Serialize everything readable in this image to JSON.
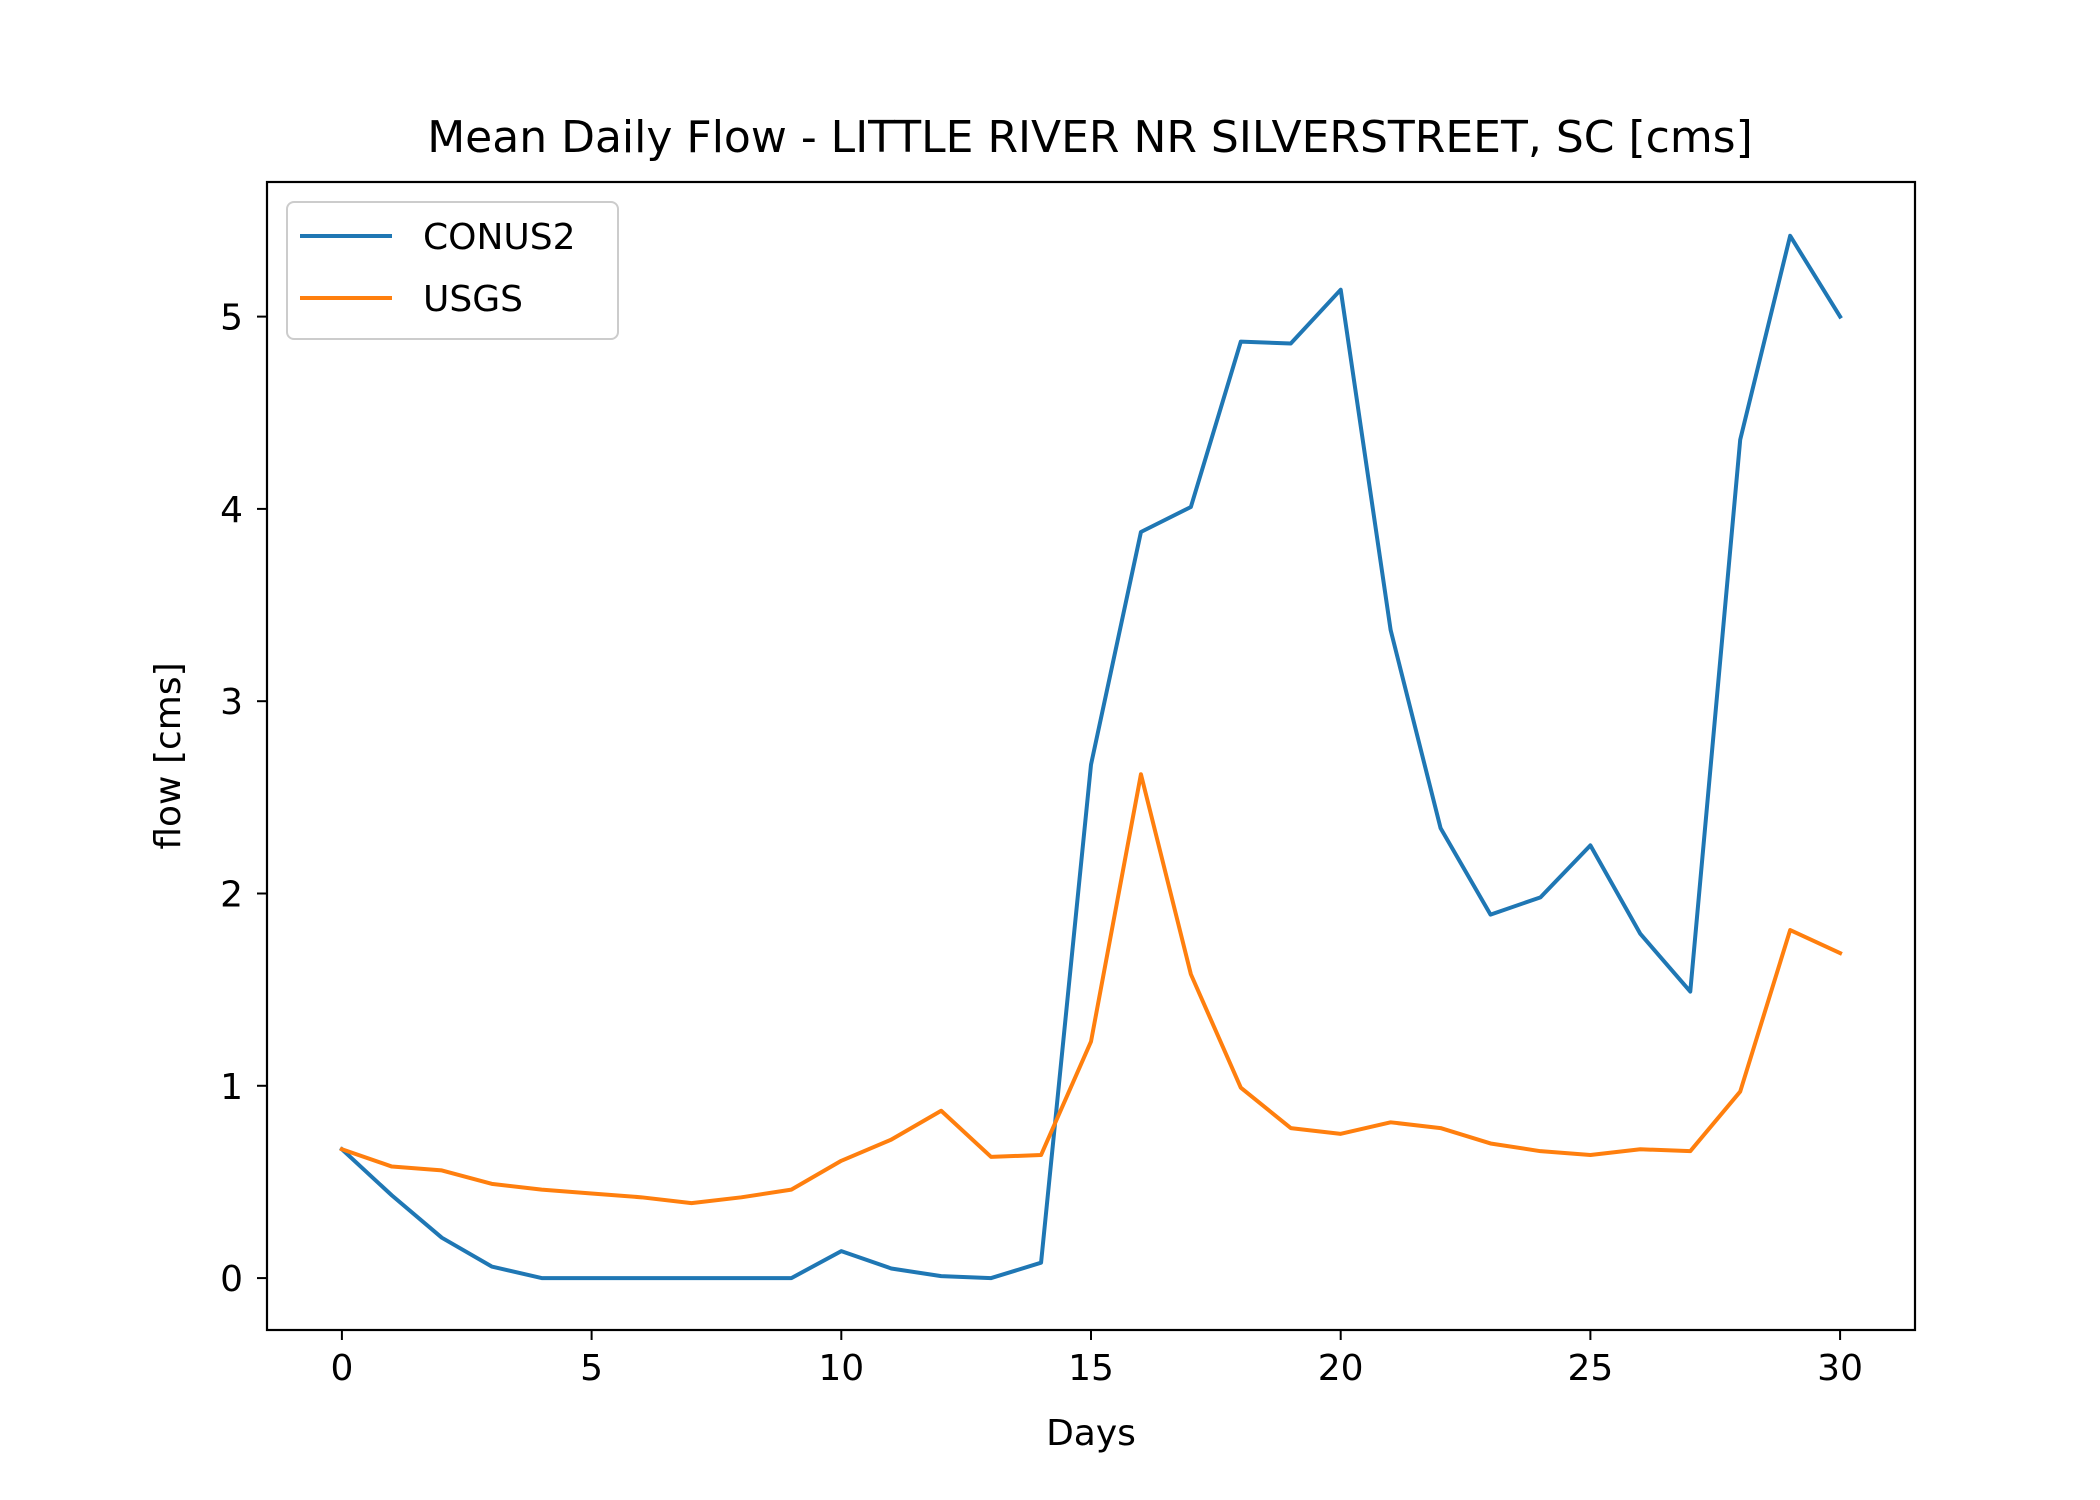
{
  "chart_data": {
    "type": "line",
    "title": "Mean Daily Flow - LITTLE RIVER NR SILVERSTREET, SC [cms]",
    "xlabel": "Days",
    "ylabel": "flow [cms]",
    "xlim": [
      -1.5,
      31.5
    ],
    "ylim": [
      -0.27,
      5.7
    ],
    "xticks": [
      0,
      5,
      10,
      15,
      20,
      25,
      30
    ],
    "xtick_labels": [
      "0",
      "5",
      "10",
      "15",
      "20",
      "25",
      "30"
    ],
    "yticks": [
      0,
      1,
      2,
      3,
      4,
      5
    ],
    "ytick_labels": [
      "0",
      "1",
      "2",
      "3",
      "4",
      "5"
    ],
    "grid": false,
    "legend_position": "top-left",
    "x": [
      0,
      1,
      2,
      3,
      4,
      5,
      6,
      7,
      8,
      9,
      10,
      11,
      12,
      13,
      14,
      15,
      16,
      17,
      18,
      19,
      20,
      21,
      22,
      23,
      24,
      25,
      26,
      27,
      28,
      29,
      30
    ],
    "series": [
      {
        "name": "CONUS2",
        "color": "#1f77b4",
        "values": [
          0.67,
          0.43,
          0.21,
          0.06,
          0.0,
          0.0,
          0.0,
          0.0,
          0.0,
          0.0,
          0.14,
          0.05,
          0.01,
          0.0,
          0.08,
          2.67,
          3.88,
          4.01,
          4.87,
          4.86,
          5.14,
          3.37,
          2.34,
          1.89,
          1.98,
          2.25,
          1.79,
          1.49,
          4.36,
          5.42,
          5.0
        ]
      },
      {
        "name": "USGS",
        "color": "#ff7f0e",
        "values": [
          0.67,
          0.58,
          0.56,
          0.49,
          0.46,
          0.44,
          0.42,
          0.39,
          0.42,
          0.46,
          0.61,
          0.72,
          0.87,
          0.63,
          0.64,
          1.23,
          2.62,
          1.58,
          0.99,
          0.78,
          0.75,
          0.81,
          0.78,
          0.7,
          0.66,
          0.64,
          0.67,
          0.66,
          0.97,
          1.81,
          1.69
        ]
      }
    ]
  }
}
